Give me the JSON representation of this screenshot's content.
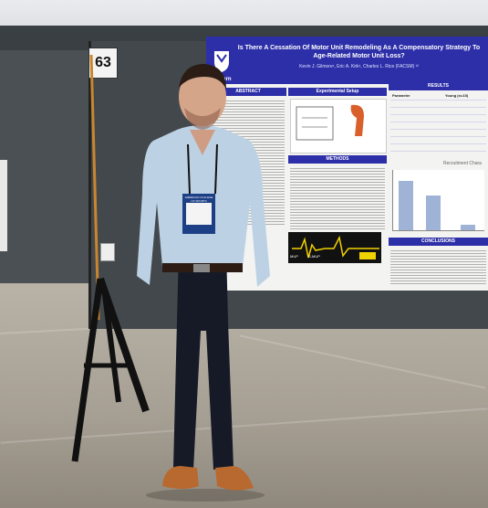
{
  "photo": {
    "board_number": "63",
    "poster": {
      "title": "Is There A Cessation Of Motor Unit Remodeling As A Compensatory Strategy To Age-Related Motor Unit Loss?",
      "authors": "Kevin J. Gilmore¹, Eric A. Kirk¹, Charles L. Rice (FACSM) ¹²",
      "logo_text": "Western",
      "sections": {
        "abstract": "ABSTRACT",
        "setup": "Experimental Setup",
        "methods": "METHODS",
        "results": "RESULTS",
        "conclusions": "CONCLUSIONS",
        "recruitment": "Recruitment Chara"
      },
      "table_header": [
        "Parameter",
        "Young (n=15)"
      ],
      "emg_labels": [
        "MUP",
        "S-MUP"
      ]
    },
    "badge_text": "AMERICAN COLLEGE OF SPORTS MEDICINE"
  }
}
